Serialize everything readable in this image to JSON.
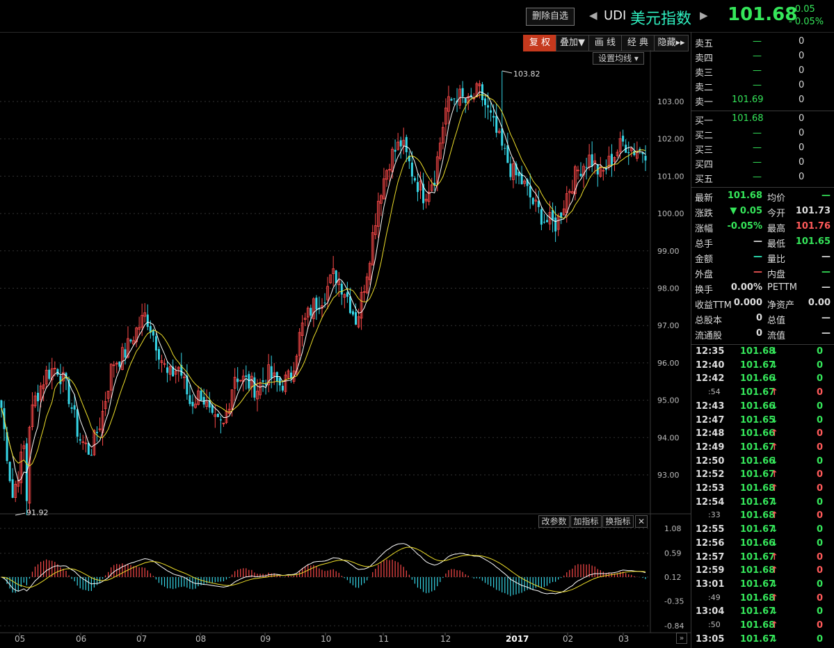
{
  "header": {
    "delete_btn": "删除自选",
    "symbol": "UDI",
    "name": "美元指数",
    "last": "101.68",
    "change": "- 0.05",
    "change_pct": "- 0.05%"
  },
  "tabs": [
    "复 权",
    "叠加▼",
    "画 线",
    "经 典",
    "隐藏▸▸"
  ],
  "set_ma": "设置均线 ▾",
  "indicator_buttons": [
    "改参数",
    "加指标",
    "换指标"
  ],
  "colors": {
    "up": "#ff4a4a",
    "down": "#36d6e7",
    "ma_white": "#ffffff",
    "ma_yellow": "#f0e02a",
    "green": "#35e65a"
  },
  "orderbook": {
    "asks": [
      {
        "label": "卖五",
        "price": "—",
        "vol": "0"
      },
      {
        "label": "卖四",
        "price": "—",
        "vol": "0"
      },
      {
        "label": "卖三",
        "price": "—",
        "vol": "0"
      },
      {
        "label": "卖二",
        "price": "—",
        "vol": "0"
      },
      {
        "label": "卖一",
        "price": "101.69",
        "vol": "0"
      }
    ],
    "bids": [
      {
        "label": "买一",
        "price": "101.68",
        "vol": "0"
      },
      {
        "label": "买二",
        "price": "—",
        "vol": "0"
      },
      {
        "label": "买三",
        "price": "—",
        "vol": "0"
      },
      {
        "label": "买四",
        "price": "—",
        "vol": "0"
      },
      {
        "label": "买五",
        "price": "—",
        "vol": "0"
      }
    ]
  },
  "stats": [
    {
      "l1": "最新",
      "v1": "101.68",
      "l2": "均价",
      "v2": "—"
    },
    {
      "l1": "涨跌",
      "v1": "▼ 0.05",
      "l2": "今开",
      "v2": "101.73"
    },
    {
      "l1": "涨幅",
      "v1": "-0.05%",
      "l2": "最高",
      "v2": "101.76"
    },
    {
      "l1": "总手",
      "v1": "—",
      "l2": "最低",
      "v2": "101.65"
    },
    {
      "l1": "金额",
      "v1": "—",
      "l2": "量比",
      "v2": "—"
    },
    {
      "l1": "外盘",
      "v1": "—",
      "l2": "内盘",
      "v2": "—"
    },
    {
      "l1": "换手",
      "v1": "0.00%",
      "l2": "PETTM",
      "v2": "—"
    },
    {
      "l1": "收益TTM",
      "v1": "0.000",
      "l2": "净资产",
      "v2": "0.00"
    },
    {
      "l1": "总股本",
      "v1": "0",
      "l2": "总值",
      "v2": "—"
    },
    {
      "l1": "流通股",
      "v1": "0",
      "l2": "流值",
      "v2": "—"
    }
  ],
  "ticks": [
    {
      "t": "12:35",
      "p": "101.68",
      "d": "down",
      "v": "0"
    },
    {
      "t": "12:40",
      "p": "101.67",
      "d": "down",
      "v": "0"
    },
    {
      "t": "12:42",
      "p": "101.66",
      "d": "down",
      "v": "0"
    },
    {
      "t": ":54",
      "p": "101.67",
      "d": "up",
      "v": "0"
    },
    {
      "t": "12:43",
      "p": "101.66",
      "d": "down",
      "v": "0"
    },
    {
      "t": "12:47",
      "p": "101.65",
      "d": "down",
      "v": "0"
    },
    {
      "t": "12:48",
      "p": "101.66",
      "d": "up",
      "v": "0"
    },
    {
      "t": "12:49",
      "p": "101.67",
      "d": "up",
      "v": "0"
    },
    {
      "t": "12:50",
      "p": "101.66",
      "d": "down",
      "v": "0"
    },
    {
      "t": "12:52",
      "p": "101.67",
      "d": "up",
      "v": "0"
    },
    {
      "t": "12:53",
      "p": "101.68",
      "d": "up",
      "v": "0"
    },
    {
      "t": "12:54",
      "p": "101.67",
      "d": "down",
      "v": "0"
    },
    {
      "t": ":33",
      "p": "101.68",
      "d": "up",
      "v": "0"
    },
    {
      "t": "12:55",
      "p": "101.67",
      "d": "down",
      "v": "0"
    },
    {
      "t": "12:56",
      "p": "101.66",
      "d": "down",
      "v": "0"
    },
    {
      "t": "12:57",
      "p": "101.67",
      "d": "up",
      "v": "0"
    },
    {
      "t": "12:59",
      "p": "101.68",
      "d": "up",
      "v": "0"
    },
    {
      "t": "13:01",
      "p": "101.67",
      "d": "down",
      "v": "0"
    },
    {
      "t": ":49",
      "p": "101.68",
      "d": "up",
      "v": "0"
    },
    {
      "t": "13:04",
      "p": "101.67",
      "d": "down",
      "v": "0"
    },
    {
      "t": ":50",
      "p": "101.68",
      "d": "up",
      "v": "0"
    },
    {
      "t": "13:05",
      "p": "101.67",
      "d": "down",
      "v": "0"
    }
  ],
  "chart_data": {
    "type": "candlestick",
    "price_axis": {
      "ticks": [
        93.0,
        94.0,
        95.0,
        96.0,
        97.0,
        98.0,
        99.0,
        100.0,
        101.0,
        102.0,
        103.0
      ],
      "ylim": [
        91.8,
        104.0
      ]
    },
    "x_ticks": [
      "05",
      "06",
      "07",
      "08",
      "09",
      "10",
      "11",
      "12",
      "2017",
      "01",
      "02",
      "03"
    ],
    "annotations": [
      {
        "text": "103.82",
        "value": 103.82,
        "month_index": 6.95
      },
      {
        "text": "91.92",
        "value": 91.92,
        "month_index": 0.25
      }
    ],
    "weekly_close_path": [
      94.8,
      92.4,
      93.7,
      95.0,
      95.7,
      95.9,
      95.2,
      94.0,
      93.6,
      94.5,
      96.0,
      96.2,
      96.8,
      97.3,
      96.5,
      95.6,
      95.9,
      94.9,
      95.2,
      94.4,
      94.3,
      95.7,
      95.5,
      95.3,
      95.7,
      95.4,
      95.6,
      96.9,
      97.5,
      97.8,
      98.4,
      97.9,
      97.1,
      98.6,
      100.5,
      101.5,
      101.9,
      101.1,
      100.5,
      101.0,
      102.8,
      103.2,
      102.9,
      103.3,
      102.6,
      101.8,
      101.1,
      100.8,
      100.2,
      99.8,
      99.7,
      100.6,
      101.2,
      101.5,
      101.0,
      101.5,
      101.9,
      101.7,
      101.68
    ],
    "macd": {
      "axis_ticks": [
        1.08,
        0.59,
        0.12,
        -0.35,
        -0.84
      ]
    }
  }
}
